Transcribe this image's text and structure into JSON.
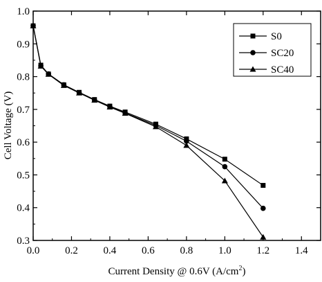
{
  "chart_data": {
    "type": "line",
    "xlabel": "Current Density @ 0.6V (A/cm",
    "xlabel_sup": "2",
    "xlabel_tail": ")",
    "ylabel": "Cell Voltage (V)",
    "xlim": [
      0.0,
      1.5
    ],
    "ylim": [
      0.3,
      1.0
    ],
    "xticks": [
      "0.0",
      "0.2",
      "0.4",
      "0.6",
      "0.8",
      "1.0",
      "1.2",
      "1.4"
    ],
    "xtick_values": [
      0.0,
      0.2,
      0.4,
      0.6,
      0.8,
      1.0,
      1.2,
      1.4
    ],
    "yticks": [
      "0.3",
      "0.4",
      "0.5",
      "0.6",
      "0.7",
      "0.8",
      "0.9",
      "1.0"
    ],
    "ytick_values": [
      0.3,
      0.4,
      0.5,
      0.6,
      0.7,
      0.8,
      0.9,
      1.0
    ],
    "grid": false,
    "legend_position": "top-right",
    "series": [
      {
        "name": "S0",
        "marker": "square",
        "x": [
          0.0,
          0.04,
          0.08,
          0.16,
          0.24,
          0.32,
          0.4,
          0.48,
          0.64,
          0.8,
          1.0,
          1.2
        ],
        "y": [
          0.955,
          0.835,
          0.808,
          0.775,
          0.752,
          0.73,
          0.71,
          0.692,
          0.655,
          0.61,
          0.548,
          0.468
        ]
      },
      {
        "name": "SC20",
        "marker": "circle",
        "x": [
          0.0,
          0.04,
          0.08,
          0.16,
          0.24,
          0.32,
          0.4,
          0.48,
          0.64,
          0.8,
          1.0,
          1.2
        ],
        "y": [
          0.955,
          0.833,
          0.808,
          0.775,
          0.751,
          0.729,
          0.709,
          0.689,
          0.651,
          0.603,
          0.525,
          0.398
        ]
      },
      {
        "name": "SC40",
        "marker": "triangle",
        "x": [
          0.0,
          0.04,
          0.08,
          0.16,
          0.24,
          0.32,
          0.4,
          0.48,
          0.64,
          0.8,
          1.0,
          1.2
        ],
        "y": [
          0.955,
          0.832,
          0.807,
          0.773,
          0.75,
          0.728,
          0.707,
          0.688,
          0.647,
          0.59,
          0.482,
          0.31
        ]
      }
    ]
  }
}
